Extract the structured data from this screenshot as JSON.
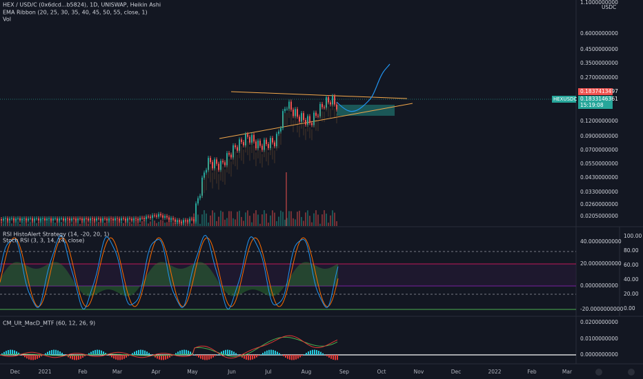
{
  "header": {
    "symbol_line": "HEX / USD/C (0x6dcd...b5824), 1D, UNISWAP, Heikin Ashi",
    "ema_line": "EMA Ribbon (20, 25, 30, 35, 40, 45, 50, 55, close, 1)",
    "vol_line": "Vol"
  },
  "price_axis": {
    "currency": "USDC",
    "labels": [
      "1.1000000000",
      "0.6000000000",
      "0.4500000000",
      "0.3500000000",
      "0.2700000000",
      "0.1200000000",
      "0.0900000000",
      "0.0700000000",
      "0.0550000000",
      "0.0430000000",
      "0.0330000000",
      "0.0260000000",
      "0.0205000000"
    ],
    "high_badge": "0.1837413497",
    "last_badge": "0.1833146361",
    "countdown": "15:19:08",
    "symbol_badge": "HEXUSDC"
  },
  "rsi_pane": {
    "title": "RSI HistoAlert Strategy (14, -20, 20, 1)",
    "subtitle": "Stoch RSI (3, 3, 14, 14, close)",
    "left_labels": [
      "40.0000000000",
      "20.0000000000",
      "0.0000000000",
      "-20.0000000000"
    ],
    "right_labels": [
      "100.00",
      "80.00",
      "60.00",
      "40.00",
      "20.00",
      "0.00"
    ]
  },
  "macd_pane": {
    "title": "CM_Ult_MacD_MTF (60, 12, 26, 9)",
    "labels": [
      "0.0200000000",
      "0.0100000000",
      "0.0000000000"
    ]
  },
  "time_axis": [
    "Dec",
    "2021",
    "Feb",
    "Mar",
    "Apr",
    "May",
    "Jun",
    "Jul",
    "Aug",
    "Sep",
    "Oct",
    "Nov",
    "Dec",
    "2022",
    "Feb",
    "Mar"
  ]
}
